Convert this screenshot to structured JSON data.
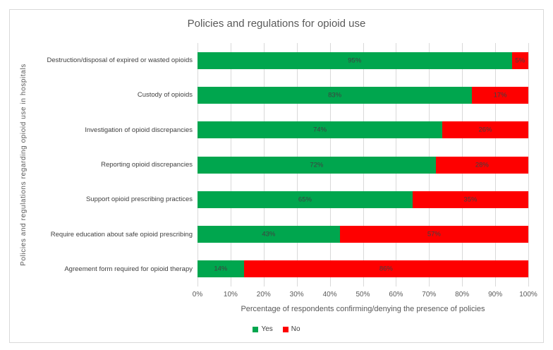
{
  "title": "Policies and regulations for opioid use",
  "chart_data": {
    "type": "bar",
    "orientation": "horizontal-stacked",
    "title": "Policies and regulations for opioid use",
    "xlabel": "Percentage of respondents confirming/denying the presence of policies",
    "ylabel": "Policies and regulations regarding opioid use in hospitals",
    "categories": [
      "Destruction/disposal of expired or wasted opioids",
      "Custody of opioids",
      "Investigation of opioid discrepancies",
      "Reporting opioid discrepancies",
      "Support opioid prescribing practices",
      "Require education about safe opioid prescribing",
      "Agreement form required for opioid therapy"
    ],
    "series": [
      {
        "name": "Yes",
        "color": "#00a64e",
        "values": [
          95,
          83,
          74,
          72,
          65,
          43,
          14
        ],
        "labels": [
          "95%",
          "83%",
          "74%",
          "72%",
          "65%",
          "43%",
          "14%"
        ]
      },
      {
        "name": "No",
        "color": "#fe0000",
        "values": [
          5,
          17,
          26,
          28,
          35,
          57,
          86
        ],
        "labels": [
          "5%",
          "17%",
          "26%",
          "28%",
          "35%",
          "57%",
          "86%"
        ]
      }
    ],
    "xlim": [
      0,
      100
    ],
    "x_ticks": [
      "0%",
      "10%",
      "20%",
      "30%",
      "40%",
      "50%",
      "60%",
      "70%",
      "80%",
      "90%",
      "100%"
    ],
    "grid": true,
    "gridline_color": "#d9d9d9",
    "legend_position": "bottom",
    "data_label_color": "#404040",
    "text_color": "#595959"
  }
}
